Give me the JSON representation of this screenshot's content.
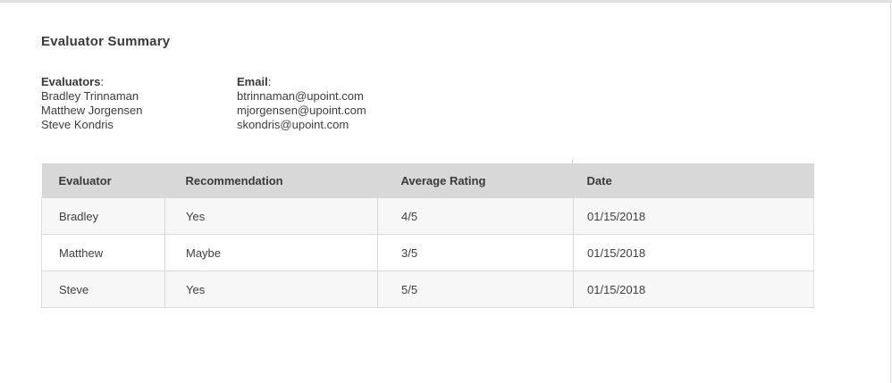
{
  "page": {
    "title": "Evaluator Summary"
  },
  "evaluators": {
    "label": "Evaluators",
    "colon": ":",
    "names": [
      "Bradley Trinnaman",
      "Matthew Jorgensen",
      "Steve Kondris"
    ]
  },
  "emails": {
    "label": "Email",
    "colon": ":",
    "addresses": [
      "btrinnaman@upoint.com",
      "mjorgensen@upoint.com",
      "skondris@upoint.com"
    ]
  },
  "table": {
    "headers": [
      "Evaluator",
      "Recommendation",
      "Average Rating",
      "Date"
    ],
    "rows": [
      {
        "evaluator": "Bradley",
        "recommendation": "Yes",
        "average_rating": "4/5",
        "date": "01/15/2018"
      },
      {
        "evaluator": "Matthew",
        "recommendation": "Maybe",
        "average_rating": "3/5",
        "date": "01/15/2018"
      },
      {
        "evaluator": "Steve",
        "recommendation": "Yes",
        "average_rating": "5/5",
        "date": "01/15/2018"
      }
    ]
  },
  "colors": {
    "header_bg": "#d8d8d8",
    "row_alt_bg": "#f7f7f7",
    "border": "#d9d9d9",
    "edge": "#e0e0e0",
    "text": "#3f3f3f",
    "heading": "#3a3a3a"
  }
}
